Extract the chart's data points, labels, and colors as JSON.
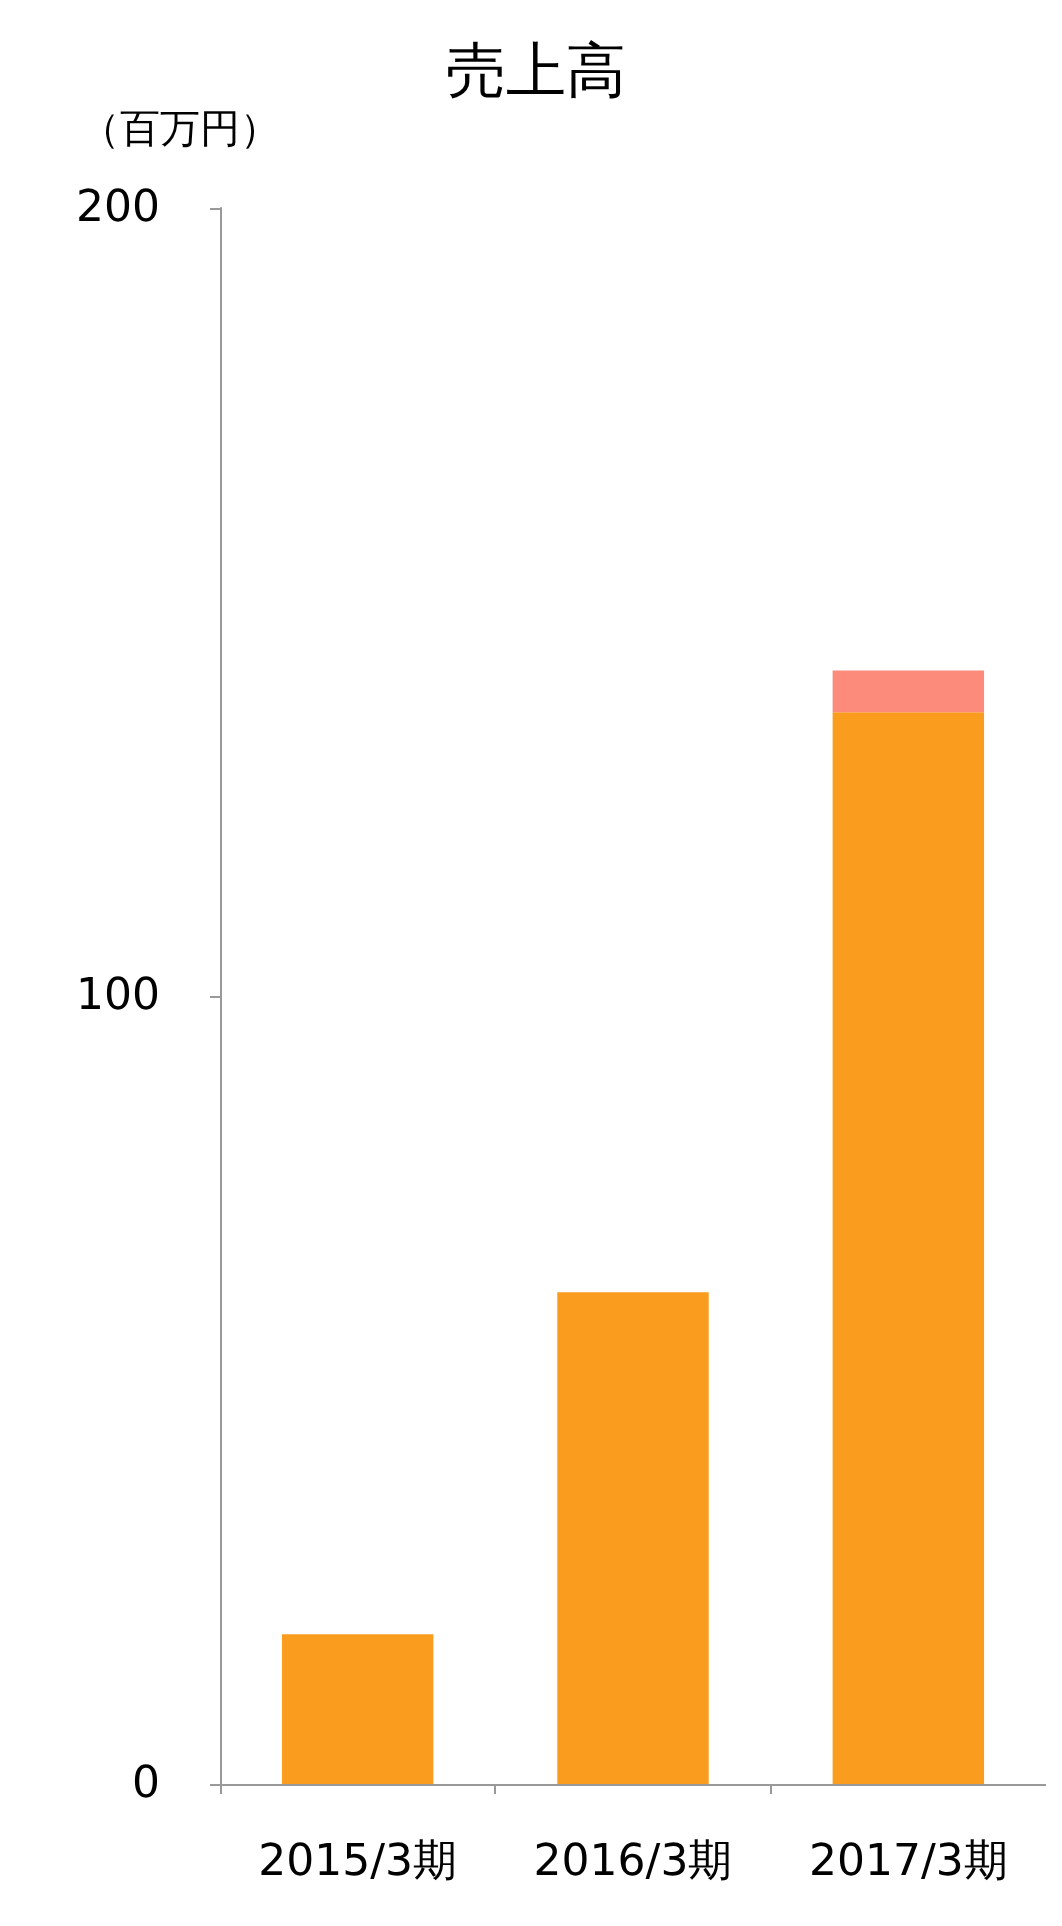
{
  "chart_data": {
    "type": "bar",
    "title": "売上高",
    "ylabel": "（百万円）",
    "categories": [
      "2015/3期",
      "2016/3期",
      "2017/3期"
    ],
    "series": [
      {
        "color": "#fa9d1e",
        "values": [
          19,
          62.4,
          136
        ]
      },
      {
        "color": "#fc8b7b",
        "values": [
          null,
          null,
          5.3
        ]
      }
    ],
    "stacked": true,
    "ylim": [
      0,
      200
    ],
    "yticks": [
      0,
      100,
      200
    ],
    "grid": false
  }
}
